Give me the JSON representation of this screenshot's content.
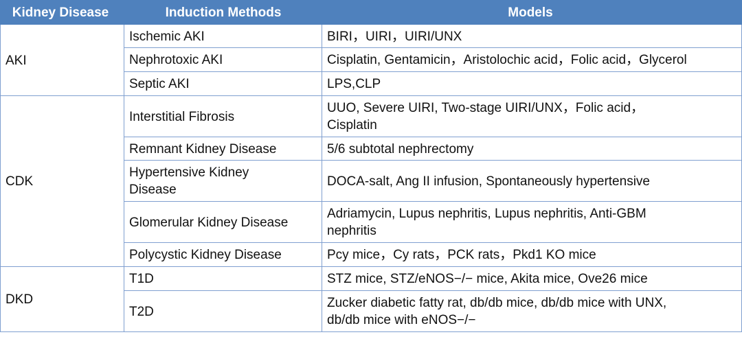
{
  "table": {
    "header": [
      "Kidney Disease",
      "Induction Methods",
      "Models"
    ],
    "groups": [
      {
        "disease": "AKI",
        "rows": [
          {
            "method": "Ischemic AKI",
            "models": "BIRI，UIRI，UIRI/UNX"
          },
          {
            "method": "Nephrotoxic AKI",
            "models": "Cisplatin, Gentamicin，Aristolochic acid，Folic acid，Glycerol"
          },
          {
            "method": "Septic AKI",
            "models": "LPS,CLP"
          }
        ]
      },
      {
        "disease": "CDK",
        "rows": [
          {
            "method": "Interstitial Fibrosis",
            "models": [
              "UUO, Severe UIRI, Two-stage UIRI/UNX，Folic acid，",
              "Cisplatin"
            ]
          },
          {
            "method": "Remnant Kidney Disease",
            "models": "5/6 subtotal nephrectomy"
          },
          {
            "method": [
              "Hypertensive Kidney",
              "Disease"
            ],
            "models": "DOCA-salt, Ang II infusion, Spontaneously hypertensive"
          },
          {
            "method": "Glomerular Kidney Disease",
            "models": [
              "Adriamycin, Lupus nephritis, Lupus nephritis, Anti-GBM",
              "nephritis"
            ]
          },
          {
            "method": "Polycystic Kidney Disease",
            "models": "Pcy mice，Cy rats，PCK rats，Pkd1 KO mice"
          }
        ]
      },
      {
        "disease": "DKD",
        "rows": [
          {
            "method": "T1D",
            "models": "STZ mice, STZ/eNOS−/− mice, Akita mice, Ove26 mice"
          },
          {
            "method": "T2D",
            "models": [
              "Zucker diabetic fatty rat, db/db mice, db/db mice with UNX,",
              "db/db mice with eNOS−/−"
            ]
          }
        ]
      }
    ]
  }
}
